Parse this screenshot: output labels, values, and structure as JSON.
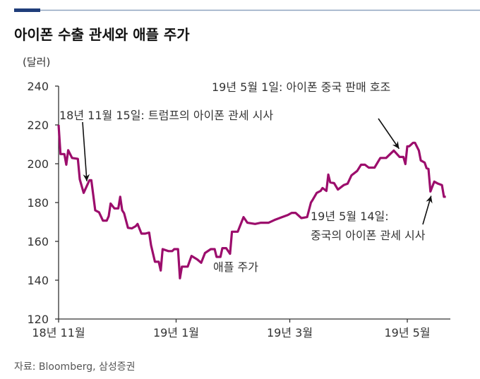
{
  "title": "아이폰 수출 관세와 애플 주가",
  "source": "자료: Bloomberg, 삼성증권",
  "colors": {
    "line": "#9c0d6c",
    "header_bar": "#1f3d7a",
    "header_rule": "#8fa3bf",
    "axis": "#333333"
  },
  "chart_data": {
    "type": "line",
    "title": "아이폰 수출 관세와 애플 주가",
    "ylabel": "(달러)",
    "xlabel": "",
    "ylim": [
      120,
      240
    ],
    "yticks": [
      120,
      140,
      160,
      180,
      200,
      220,
      240
    ],
    "xlim": [
      "2018-11-01",
      "2019-05-22"
    ],
    "xticks": [
      {
        "date": "2018-11-01",
        "label": "18년 11월"
      },
      {
        "date": "2019-01-01",
        "label": "19년 1월"
      },
      {
        "date": "2019-03-01",
        "label": "19년 3월"
      },
      {
        "date": "2019-05-01",
        "label": "19년 5월"
      }
    ],
    "grid": false,
    "series": [
      {
        "name": "애플 주가",
        "points": [
          [
            "2018-11-01",
            220
          ],
          [
            "2018-11-02",
            205
          ],
          [
            "2018-11-04",
            205
          ],
          [
            "2018-11-05",
            199.5
          ],
          [
            "2018-11-06",
            207
          ],
          [
            "2018-11-08",
            203
          ],
          [
            "2018-11-11",
            202.5
          ],
          [
            "2018-11-12",
            192
          ],
          [
            "2018-11-14",
            185
          ],
          [
            "2018-11-17",
            191.5
          ],
          [
            "2018-11-18",
            191.5
          ],
          [
            "2018-11-20",
            176
          ],
          [
            "2018-11-22",
            175
          ],
          [
            "2018-11-24",
            170.7
          ],
          [
            "2018-11-26",
            170.7
          ],
          [
            "2018-11-27",
            173
          ],
          [
            "2018-11-28",
            179.5
          ],
          [
            "2018-11-30",
            177
          ],
          [
            "2018-12-02",
            177
          ],
          [
            "2018-12-03",
            183
          ],
          [
            "2018-12-04",
            176
          ],
          [
            "2018-12-05",
            174.5
          ],
          [
            "2018-12-07",
            167
          ],
          [
            "2018-12-09",
            166.7
          ],
          [
            "2018-12-11",
            167.8
          ],
          [
            "2018-12-12",
            169
          ],
          [
            "2018-12-14",
            164
          ],
          [
            "2018-12-16",
            164
          ],
          [
            "2018-12-18",
            164.5
          ],
          [
            "2018-12-19",
            158
          ],
          [
            "2018-12-21",
            149.5
          ],
          [
            "2018-12-23",
            149.5
          ],
          [
            "2018-12-24",
            145
          ],
          [
            "2018-12-25",
            156
          ],
          [
            "2018-12-28",
            155
          ],
          [
            "2018-12-30",
            155
          ],
          [
            "2018-12-31",
            156
          ],
          [
            "2019-01-02",
            156
          ],
          [
            "2019-01-03",
            141
          ],
          [
            "2019-01-04",
            147
          ],
          [
            "2019-01-07",
            147
          ],
          [
            "2019-01-09",
            152.5
          ],
          [
            "2019-01-12",
            150.7
          ],
          [
            "2019-01-14",
            149
          ],
          [
            "2019-01-16",
            154
          ],
          [
            "2019-01-19",
            156
          ],
          [
            "2019-01-21",
            156
          ],
          [
            "2019-01-22",
            152
          ],
          [
            "2019-01-24",
            152
          ],
          [
            "2019-01-25",
            156.5
          ],
          [
            "2019-01-27",
            156.5
          ],
          [
            "2019-01-29",
            153.6
          ],
          [
            "2019-01-30",
            165
          ],
          [
            "2019-02-02",
            165
          ],
          [
            "2019-02-05",
            172.5
          ],
          [
            "2019-02-07",
            169.6
          ],
          [
            "2019-02-11",
            169
          ],
          [
            "2019-02-14",
            169.6
          ],
          [
            "2019-02-18",
            169.6
          ],
          [
            "2019-02-21",
            171
          ],
          [
            "2019-02-25",
            172.5
          ],
          [
            "2019-02-28",
            173.6
          ],
          [
            "2019-03-02",
            174.7
          ],
          [
            "2019-03-04",
            174.7
          ],
          [
            "2019-03-07",
            172
          ],
          [
            "2019-03-10",
            172.5
          ],
          [
            "2019-03-12",
            180
          ],
          [
            "2019-03-13",
            181.6
          ],
          [
            "2019-03-15",
            185
          ],
          [
            "2019-03-17",
            186
          ],
          [
            "2019-03-18",
            187.5
          ],
          [
            "2019-03-20",
            186
          ],
          [
            "2019-03-21",
            194.4
          ],
          [
            "2019-03-22",
            190.4
          ],
          [
            "2019-03-24",
            190
          ],
          [
            "2019-03-26",
            186.7
          ],
          [
            "2019-03-29",
            189
          ],
          [
            "2019-03-31",
            189.7
          ],
          [
            "2019-04-02",
            194
          ],
          [
            "2019-04-05",
            196.3
          ],
          [
            "2019-04-07",
            199.5
          ],
          [
            "2019-04-09",
            199.5
          ],
          [
            "2019-04-11",
            198
          ],
          [
            "2019-04-14",
            198
          ],
          [
            "2019-04-17",
            203
          ],
          [
            "2019-04-20",
            203
          ],
          [
            "2019-04-24",
            206.8
          ],
          [
            "2019-04-25",
            205.7
          ],
          [
            "2019-04-27",
            203.5
          ],
          [
            "2019-04-29",
            203.5
          ],
          [
            "2019-04-30",
            199.8
          ],
          [
            "2019-05-01",
            209
          ],
          [
            "2019-05-02",
            209
          ],
          [
            "2019-05-04",
            210.8
          ],
          [
            "2019-05-05",
            210.8
          ],
          [
            "2019-05-07",
            206.8
          ],
          [
            "2019-05-08",
            201.7
          ],
          [
            "2019-05-10",
            200.6
          ],
          [
            "2019-05-11",
            197.7
          ],
          [
            "2019-05-12",
            197.3
          ],
          [
            "2019-05-13",
            185.7
          ],
          [
            "2019-05-15",
            190.8
          ],
          [
            "2019-05-17",
            189.7
          ],
          [
            "2019-05-19",
            189
          ],
          [
            "2019-05-20",
            183
          ],
          [
            "2019-05-21",
            183
          ]
        ]
      }
    ],
    "annotations": [
      {
        "lines": [
          "18년 11월 15일: 트럼프의 아이폰 관세 시사"
        ],
        "date": "2018-11-15",
        "value": 191
      },
      {
        "lines": [
          "19년 5월 1일: 아이폰 중국 판매 호조"
        ],
        "date": "2019-04-26",
        "value": 207
      },
      {
        "lines": [
          "19년 5월 14일:",
          "중국의 아이폰 관세 시사"
        ],
        "date": "2019-05-13",
        "value": 186
      },
      {
        "lines": [
          "애플 주가"
        ]
      }
    ]
  }
}
